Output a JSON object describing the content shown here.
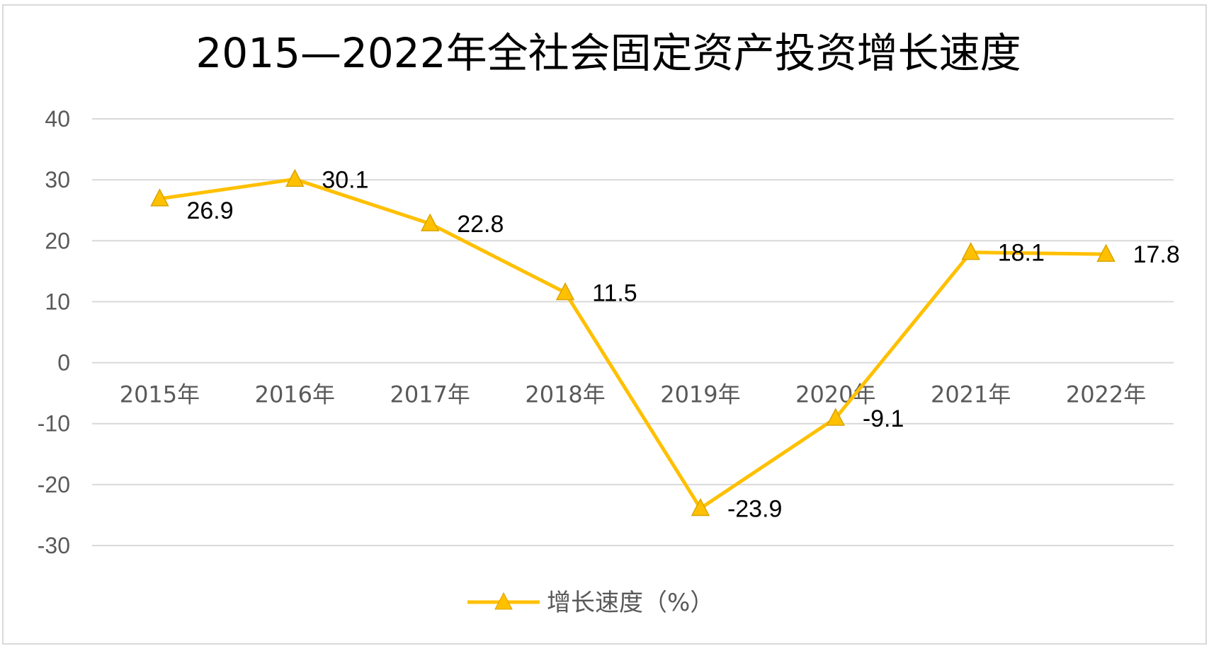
{
  "chart_data": {
    "type": "line",
    "title": "2015—2022年全社会固定资产投资增长速度",
    "categories": [
      "2015年",
      "2016年",
      "2017年",
      "2018年",
      "2019年",
      "2020年",
      "2021年",
      "2022年"
    ],
    "series": [
      {
        "name": "增长速度（%）",
        "values": [
          26.9,
          30.1,
          22.8,
          11.5,
          -23.9,
          -9.1,
          18.1,
          17.8
        ],
        "color": "#FFC000",
        "marker": "triangle"
      }
    ],
    "ylim": [
      -30,
      40
    ],
    "yticks": [
      "40",
      "30",
      "20",
      "10",
      "0",
      "-10",
      "-20",
      "-30"
    ],
    "data_labels": [
      "26.9",
      "30.1",
      "22.8",
      "11.5",
      "-23.9",
      "-9.1",
      "18.1",
      "17.8"
    ],
    "grid": true,
    "legend_position": "bottom",
    "gridline_color": "#d9d9d9"
  }
}
